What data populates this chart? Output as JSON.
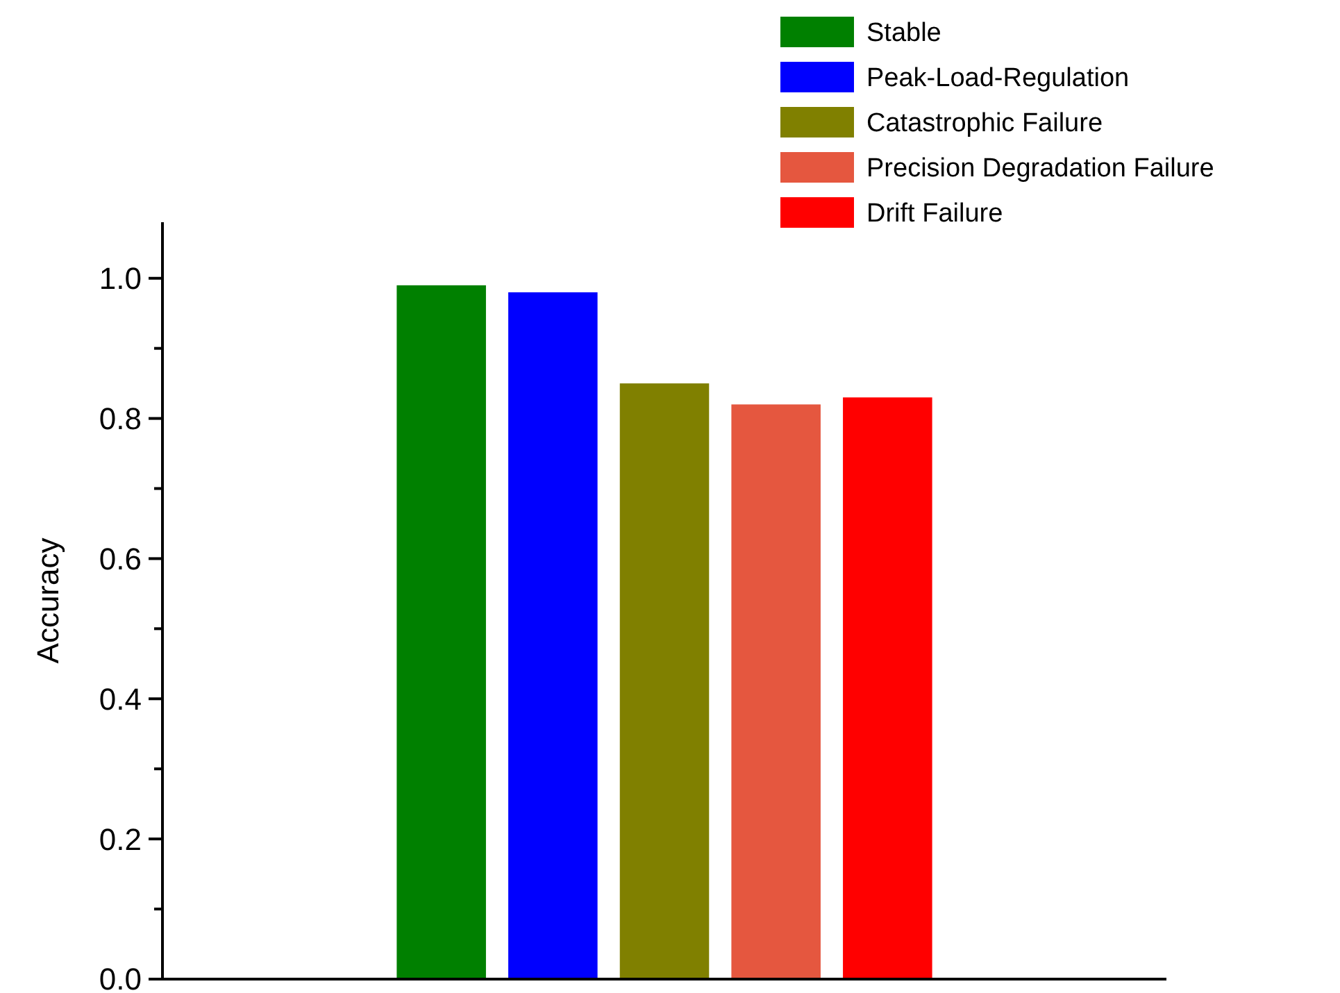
{
  "chart_data": {
    "type": "bar",
    "ylabel": "Accuracy",
    "categories": [
      null,
      null,
      null,
      null,
      null,
      null,
      null,
      null,
      null
    ],
    "series": [
      {
        "name": "Stable",
        "color": "#008000",
        "values": [
          null,
          null,
          0.99,
          null,
          null,
          null,
          null,
          null,
          null
        ]
      },
      {
        "name": "Peak-Load-Regulation",
        "color": "#0000ff",
        "values": [
          null,
          null,
          null,
          0.98,
          null,
          null,
          null,
          null,
          null
        ]
      },
      {
        "name": "Catastrophic Failure",
        "color": "#808000",
        "values": [
          null,
          null,
          null,
          null,
          0.85,
          null,
          null,
          null,
          null
        ]
      },
      {
        "name": "Precision Degradation Failure",
        "color": "#e5573f",
        "values": [
          null,
          null,
          null,
          null,
          null,
          0.82,
          null,
          null,
          null
        ]
      },
      {
        "name": "Drift Failure",
        "color": "#ff0000",
        "values": [
          null,
          null,
          null,
          null,
          null,
          null,
          0.83,
          null,
          null
        ]
      }
    ],
    "ylim": [
      0,
      1.08
    ],
    "yticks": [
      {
        "value": 0,
        "label": "0.0"
      },
      {
        "value": 0.1,
        "label": null
      },
      {
        "value": 0.2,
        "label": "0.2"
      },
      {
        "value": 0.3,
        "label": null
      },
      {
        "value": 0.4,
        "label": "0.4"
      },
      {
        "value": 0.5,
        "label": null
      },
      {
        "value": 0.6,
        "label": "0.6"
      },
      {
        "value": 0.7,
        "label": null
      },
      {
        "value": 0.8,
        "label": "0.8"
      },
      {
        "value": 0.9,
        "label": null
      },
      {
        "value": 1.0,
        "label": "1.0"
      }
    ],
    "stacked": true,
    "legend": "top right"
  }
}
